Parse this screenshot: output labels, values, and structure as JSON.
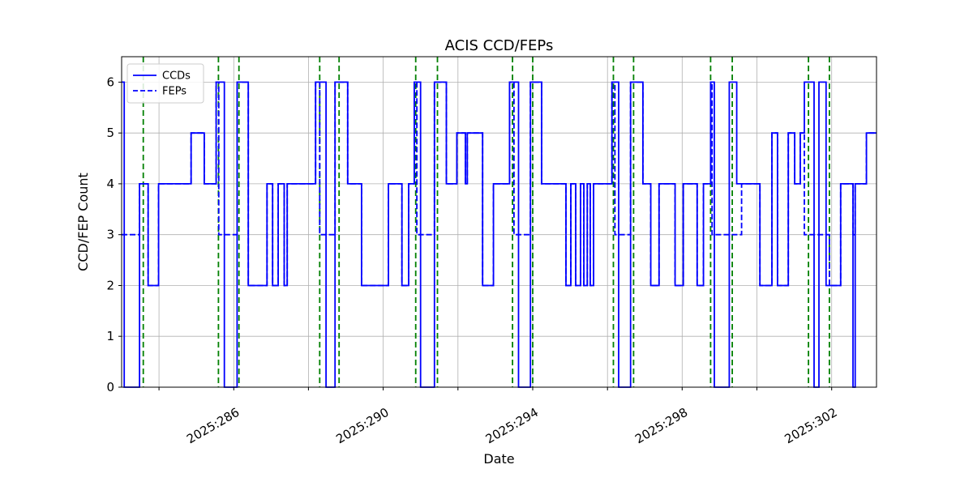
{
  "chart_data": {
    "type": "line",
    "title": "ACIS CCD/FEPs",
    "xlabel": "Date",
    "ylabel": "CCD/FEP Count",
    "grid": true,
    "colors": {
      "series": "#0000ff",
      "event_vline": "#008000",
      "grid": "#b0b0b0",
      "axes": "#000000",
      "background": "#ffffff"
    },
    "x_axis": {
      "lim": [
        283.0,
        303.2
      ],
      "tick_label_rotation_deg": 30,
      "major_ticks": [
        {
          "value": 286,
          "label": "2025:286"
        },
        {
          "value": 290,
          "label": "2025:290"
        },
        {
          "value": 294,
          "label": "2025:294"
        },
        {
          "value": 298,
          "label": "2025:298"
        },
        {
          "value": 302,
          "label": "2025:302"
        }
      ],
      "gridline_positions": [
        284,
        286,
        288,
        290,
        292,
        294,
        296,
        298,
        300,
        302
      ]
    },
    "y_axis": {
      "lim": [
        0,
        6.5
      ],
      "ticks": [
        {
          "value": 0,
          "label": "0"
        },
        {
          "value": 1,
          "label": "1"
        },
        {
          "value": 2,
          "label": "2"
        },
        {
          "value": 3,
          "label": "3"
        },
        {
          "value": 4,
          "label": "4"
        },
        {
          "value": 5,
          "label": "5"
        },
        {
          "value": 6,
          "label": "6"
        }
      ]
    },
    "legend": {
      "position": "upper-left",
      "entries": [
        {
          "label": "CCDs",
          "style": "solid"
        },
        {
          "label": "FEPs",
          "style": "dashed"
        }
      ]
    },
    "event_vlines": {
      "color": "#008000",
      "style": "dashed",
      "x_values": [
        283.58,
        285.59,
        286.14,
        288.3,
        288.82,
        290.87,
        291.45,
        293.46,
        294.0,
        296.16,
        296.7,
        298.76,
        299.34,
        301.38,
        301.94
      ]
    },
    "series": [
      {
        "name": "CCDs",
        "line_style": "solid",
        "color": "#0000ff",
        "steps": [
          [
            283.0,
            6
          ],
          [
            283.07,
            0
          ],
          [
            283.48,
            4
          ],
          [
            283.71,
            2
          ],
          [
            283.99,
            4
          ],
          [
            284.86,
            5
          ],
          [
            285.21,
            4
          ],
          [
            285.53,
            6
          ],
          [
            285.75,
            0
          ],
          [
            286.09,
            6
          ],
          [
            286.39,
            2
          ],
          [
            286.89,
            4
          ],
          [
            287.04,
            2
          ],
          [
            287.19,
            4
          ],
          [
            287.35,
            2
          ],
          [
            287.43,
            4
          ],
          [
            288.19,
            6
          ],
          [
            288.47,
            0
          ],
          [
            288.71,
            6
          ],
          [
            289.05,
            4
          ],
          [
            289.42,
            2
          ],
          [
            290.14,
            4
          ],
          [
            290.5,
            2
          ],
          [
            290.68,
            4
          ],
          [
            290.83,
            6
          ],
          [
            291.0,
            0
          ],
          [
            291.37,
            6
          ],
          [
            291.69,
            4
          ],
          [
            291.97,
            5
          ],
          [
            292.2,
            4
          ],
          [
            292.25,
            5
          ],
          [
            292.66,
            2
          ],
          [
            292.95,
            4
          ],
          [
            293.38,
            6
          ],
          [
            293.62,
            0
          ],
          [
            293.94,
            6
          ],
          [
            294.24,
            4
          ],
          [
            294.89,
            2
          ],
          [
            295.02,
            4
          ],
          [
            295.15,
            2
          ],
          [
            295.28,
            4
          ],
          [
            295.37,
            2
          ],
          [
            295.46,
            4
          ],
          [
            295.54,
            2
          ],
          [
            295.63,
            4
          ],
          [
            296.12,
            6
          ],
          [
            296.3,
            0
          ],
          [
            296.62,
            6
          ],
          [
            296.95,
            4
          ],
          [
            297.16,
            2
          ],
          [
            297.38,
            4
          ],
          [
            297.81,
            2
          ],
          [
            298.03,
            4
          ],
          [
            298.4,
            2
          ],
          [
            298.57,
            4
          ],
          [
            298.76,
            6
          ],
          [
            298.86,
            0
          ],
          [
            299.26,
            6
          ],
          [
            299.46,
            4
          ],
          [
            300.08,
            2
          ],
          [
            300.4,
            5
          ],
          [
            300.55,
            2
          ],
          [
            300.84,
            5
          ],
          [
            301.01,
            4
          ],
          [
            301.16,
            5
          ],
          [
            301.27,
            6
          ],
          [
            301.53,
            0
          ],
          [
            301.66,
            6
          ],
          [
            301.85,
            2
          ],
          [
            302.24,
            4
          ],
          [
            302.57,
            0
          ],
          [
            302.63,
            4
          ],
          [
            302.93,
            5
          ],
          [
            303.2,
            5
          ]
        ]
      },
      {
        "name": "FEPs",
        "line_style": "dashed",
        "color": "#0000ff",
        "steps": [
          [
            283.0,
            3
          ],
          [
            283.48,
            4
          ],
          [
            283.71,
            2
          ],
          [
            283.99,
            4
          ],
          [
            284.86,
            5
          ],
          [
            285.21,
            4
          ],
          [
            285.53,
            6
          ],
          [
            285.6,
            3
          ],
          [
            286.09,
            6
          ],
          [
            286.39,
            2
          ],
          [
            286.89,
            4
          ],
          [
            287.04,
            2
          ],
          [
            287.19,
            4
          ],
          [
            287.35,
            2
          ],
          [
            287.43,
            4
          ],
          [
            288.19,
            6
          ],
          [
            288.3,
            3
          ],
          [
            288.71,
            6
          ],
          [
            289.05,
            4
          ],
          [
            289.42,
            2
          ],
          [
            290.14,
            4
          ],
          [
            290.5,
            2
          ],
          [
            290.68,
            4
          ],
          [
            290.83,
            6
          ],
          [
            290.9,
            3
          ],
          [
            291.37,
            6
          ],
          [
            291.69,
            4
          ],
          [
            291.97,
            5
          ],
          [
            292.2,
            4
          ],
          [
            292.25,
            5
          ],
          [
            292.66,
            2
          ],
          [
            292.95,
            4
          ],
          [
            293.38,
            6
          ],
          [
            293.5,
            3
          ],
          [
            293.94,
            6
          ],
          [
            294.24,
            4
          ],
          [
            294.89,
            2
          ],
          [
            295.02,
            4
          ],
          [
            295.15,
            2
          ],
          [
            295.28,
            4
          ],
          [
            295.37,
            2
          ],
          [
            295.46,
            4
          ],
          [
            295.54,
            2
          ],
          [
            295.63,
            4
          ],
          [
            296.12,
            6
          ],
          [
            296.2,
            3
          ],
          [
            296.62,
            6
          ],
          [
            296.95,
            4
          ],
          [
            297.16,
            2
          ],
          [
            297.38,
            4
          ],
          [
            297.81,
            2
          ],
          [
            298.03,
            4
          ],
          [
            298.4,
            2
          ],
          [
            298.57,
            4
          ],
          [
            298.76,
            6
          ],
          [
            298.8,
            3
          ],
          [
            299.59,
            4
          ],
          [
            300.08,
            2
          ],
          [
            300.4,
            5
          ],
          [
            300.55,
            2
          ],
          [
            300.84,
            5
          ],
          [
            301.01,
            4
          ],
          [
            301.16,
            5
          ],
          [
            301.27,
            3
          ],
          [
            301.94,
            2
          ],
          [
            302.24,
            4
          ],
          [
            302.57,
            3
          ],
          [
            302.63,
            4
          ],
          [
            302.93,
            5
          ],
          [
            303.2,
            5
          ]
        ]
      }
    ]
  }
}
